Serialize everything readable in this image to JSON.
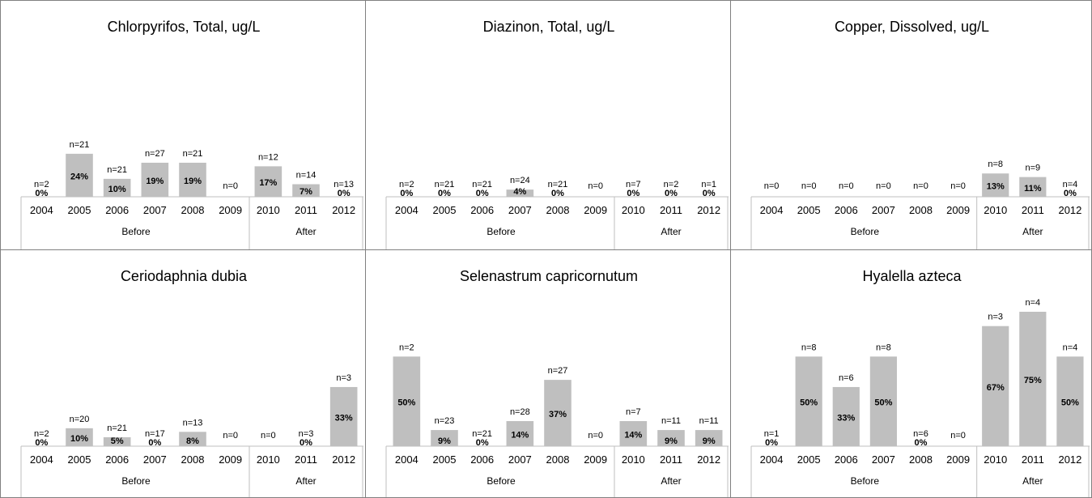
{
  "colors": {
    "bar": "#bfbfbf",
    "axis": "#bfbfbf",
    "border": "#808080",
    "text": "#000000"
  },
  "chart_data": [
    {
      "type": "bar",
      "title": "Chlorpyrifos, Total, ug/L",
      "categories": [
        "2004",
        "2005",
        "2006",
        "2007",
        "2008",
        "2009",
        "2010",
        "2011",
        "2012"
      ],
      "values": [
        0,
        24,
        10,
        19,
        19,
        null,
        17,
        7,
        0
      ],
      "value_labels": [
        "0%",
        "24%",
        "10%",
        "19%",
        "19%",
        "",
        "17%",
        "7%",
        "0%"
      ],
      "n_labels": [
        "n=2",
        "n=21",
        "n=21",
        "n=27",
        "n=21",
        "n=0",
        "n=12",
        "n=14",
        "n=13"
      ],
      "groups": [
        {
          "label": "Before",
          "span": 6
        },
        {
          "label": "After",
          "span": 3
        }
      ],
      "ylim": [
        0,
        75
      ]
    },
    {
      "type": "bar",
      "title": "Diazinon, Total, ug/L",
      "categories": [
        "2004",
        "2005",
        "2006",
        "2007",
        "2008",
        "2009",
        "2010",
        "2011",
        "2012"
      ],
      "values": [
        0,
        0,
        0,
        4,
        0,
        null,
        0,
        0,
        0
      ],
      "value_labels": [
        "0%",
        "0%",
        "0%",
        "4%",
        "0%",
        "",
        "0%",
        "0%",
        "0%"
      ],
      "n_labels": [
        "n=2",
        "n=21",
        "n=21",
        "n=24",
        "n=21",
        "n=0",
        "n=7",
        "n=2",
        "n=1"
      ],
      "groups": [
        {
          "label": "Before",
          "span": 6
        },
        {
          "label": "After",
          "span": 3
        }
      ],
      "ylim": [
        0,
        75
      ]
    },
    {
      "type": "bar",
      "title": "Copper, Dissolved, ug/L",
      "categories": [
        "2004",
        "2005",
        "2006",
        "2007",
        "2008",
        "2009",
        "2010",
        "2011",
        "2012"
      ],
      "values": [
        null,
        null,
        null,
        null,
        null,
        null,
        13,
        11,
        0
      ],
      "value_labels": [
        "",
        "",
        "",
        "",
        "",
        "",
        "13%",
        "11%",
        "0%"
      ],
      "n_labels": [
        "n=0",
        "n=0",
        "n=0",
        "n=0",
        "n=0",
        "n=0",
        "n=8",
        "n=9",
        "n=4"
      ],
      "groups": [
        {
          "label": "Before",
          "span": 6
        },
        {
          "label": "After",
          "span": 3
        }
      ],
      "ylim": [
        0,
        75
      ]
    },
    {
      "type": "bar",
      "title": "Ceriodaphnia dubia",
      "categories": [
        "2004",
        "2005",
        "2006",
        "2007",
        "2008",
        "2009",
        "2010",
        "2011",
        "2012"
      ],
      "values": [
        0,
        10,
        5,
        0,
        8,
        null,
        null,
        0,
        33
      ],
      "value_labels": [
        "0%",
        "10%",
        "5%",
        "0%",
        "8%",
        "",
        "",
        "0%",
        "33%"
      ],
      "n_labels": [
        "n=2",
        "n=20",
        "n=21",
        "n=17",
        "n=13",
        "n=0",
        "n=0",
        "n=3",
        "n=3"
      ],
      "groups": [
        {
          "label": "Before",
          "span": 6
        },
        {
          "label": "After",
          "span": 3
        }
      ],
      "ylim": [
        0,
        75
      ]
    },
    {
      "type": "bar",
      "title": "Selenastrum capricornutum",
      "categories": [
        "2004",
        "2005",
        "2006",
        "2007",
        "2008",
        "2009",
        "2010",
        "2011",
        "2012"
      ],
      "values": [
        50,
        9,
        0,
        14,
        37,
        null,
        14,
        9,
        9
      ],
      "value_labels": [
        "50%",
        "9%",
        "0%",
        "14%",
        "37%",
        "",
        "14%",
        "9%",
        "9%"
      ],
      "n_labels": [
        "n=2",
        "n=23",
        "n=21",
        "n=28",
        "n=27",
        "n=0",
        "n=7",
        "n=11",
        "n=11"
      ],
      "groups": [
        {
          "label": "Before",
          "span": 6
        },
        {
          "label": "After",
          "span": 3
        }
      ],
      "ylim": [
        0,
        75
      ]
    },
    {
      "type": "bar",
      "title": "Hyalella azteca",
      "categories": [
        "2004",
        "2005",
        "2006",
        "2007",
        "2008",
        "2009",
        "2010",
        "2011",
        "2012"
      ],
      "values": [
        0,
        50,
        33,
        50,
        0,
        null,
        67,
        75,
        50
      ],
      "value_labels": [
        "0%",
        "50%",
        "33%",
        "50%",
        "0%",
        "",
        "67%",
        "75%",
        "50%"
      ],
      "n_labels": [
        "n=1",
        "n=8",
        "n=6",
        "n=8",
        "n=6",
        "n=0",
        "n=3",
        "n=4",
        "n=4"
      ],
      "groups": [
        {
          "label": "Before",
          "span": 6
        },
        {
          "label": "After",
          "span": 3
        }
      ],
      "ylim": [
        0,
        75
      ]
    }
  ]
}
